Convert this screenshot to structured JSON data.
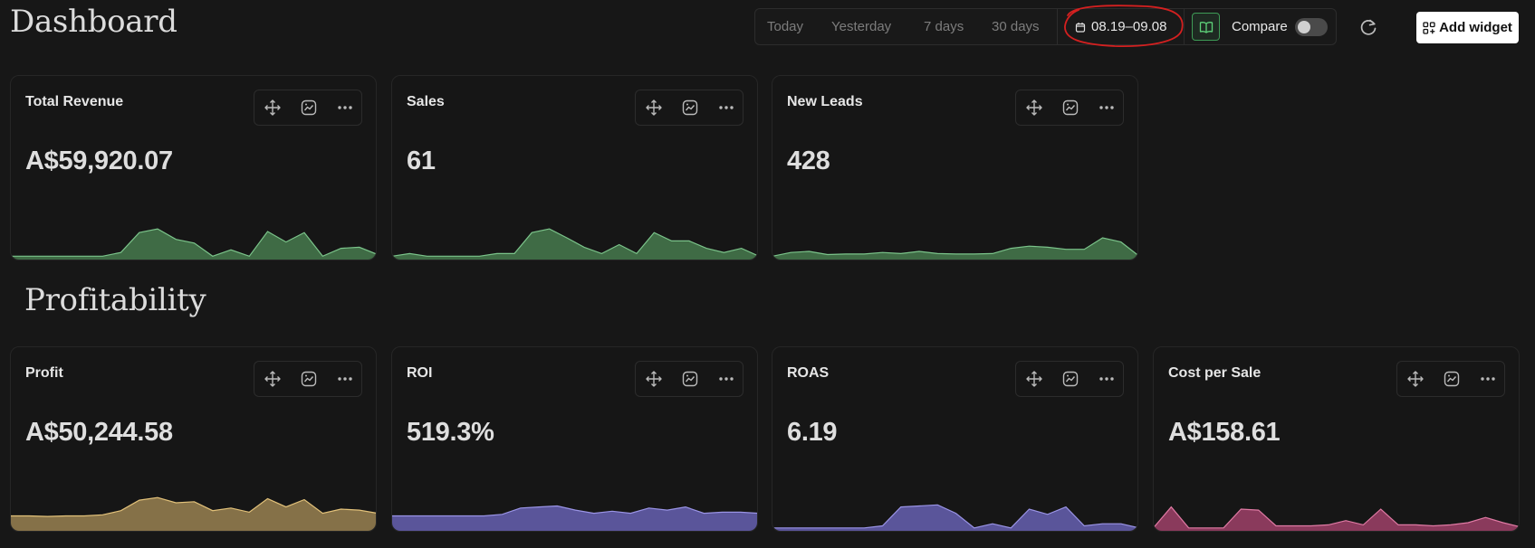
{
  "header": {
    "title": "Dashboard"
  },
  "toolbar": {
    "ranges": [
      "Today",
      "Yesterday",
      "7 days",
      "30 days"
    ],
    "date_range": "08.19–09.08",
    "compare_label": "Compare",
    "compare_enabled": false,
    "add_widget_label": "Add widget"
  },
  "overview": {
    "cards": [
      {
        "title": "Total Revenue",
        "value": "A$59,920.07",
        "color": "#3f6b45",
        "line": "#7bc48a",
        "trend": [
          0.03,
          0.03,
          0.03,
          0.03,
          0.03,
          0.03,
          0.1,
          0.48,
          0.55,
          0.35,
          0.28,
          0.03,
          0.15,
          0.03,
          0.5,
          0.3,
          0.48,
          0.03,
          0.18,
          0.2,
          0.06
        ]
      },
      {
        "title": "Sales",
        "value": "61",
        "color": "#3f6b45",
        "line": "#7bc48a",
        "trend": [
          0.03,
          0.08,
          0.03,
          0.03,
          0.03,
          0.03,
          0.08,
          0.08,
          0.48,
          0.55,
          0.38,
          0.2,
          0.08,
          0.25,
          0.08,
          0.48,
          0.32,
          0.32,
          0.18,
          0.1,
          0.18,
          0.03
        ]
      },
      {
        "title": "New Leads",
        "value": "428",
        "color": "#3f6b45",
        "line": "#7bc48a",
        "trend": [
          0.03,
          0.1,
          0.12,
          0.06,
          0.07,
          0.07,
          0.1,
          0.08,
          0.12,
          0.08,
          0.07,
          0.07,
          0.08,
          0.18,
          0.22,
          0.2,
          0.16,
          0.16,
          0.38,
          0.3,
          0.03
        ]
      }
    ]
  },
  "profitability": {
    "title": "Profitability",
    "cards": [
      {
        "title": "Profit",
        "value": "A$50,244.58",
        "color": "#857148",
        "line": "#e3c27a",
        "trend": [
          0.25,
          0.25,
          0.24,
          0.25,
          0.25,
          0.27,
          0.35,
          0.55,
          0.6,
          0.5,
          0.52,
          0.35,
          0.4,
          0.32,
          0.58,
          0.42,
          0.56,
          0.3,
          0.38,
          0.36,
          0.3
        ]
      },
      {
        "title": "ROI",
        "value": "519.3%",
        "color": "#5a559a",
        "line": "#9a94e6",
        "trend": [
          0.25,
          0.25,
          0.25,
          0.25,
          0.25,
          0.25,
          0.28,
          0.4,
          0.42,
          0.44,
          0.36,
          0.3,
          0.34,
          0.3,
          0.4,
          0.36,
          0.42,
          0.3,
          0.32,
          0.32,
          0.3
        ]
      },
      {
        "title": "ROAS",
        "value": "6.19",
        "color": "#5a559a",
        "line": "#9a94e6",
        "trend": [
          0.02,
          0.02,
          0.02,
          0.02,
          0.02,
          0.02,
          0.06,
          0.42,
          0.44,
          0.46,
          0.3,
          0.02,
          0.1,
          0.02,
          0.38,
          0.28,
          0.42,
          0.06,
          0.1,
          0.1,
          0.02
        ]
      },
      {
        "title": "Cost per Sale",
        "value": "A$158.61",
        "color": "#8a3a5c",
        "line": "#e07aa4",
        "trend": [
          0.03,
          0.42,
          0.02,
          0.02,
          0.02,
          0.38,
          0.36,
          0.06,
          0.06,
          0.06,
          0.08,
          0.16,
          0.08,
          0.38,
          0.08,
          0.08,
          0.06,
          0.08,
          0.12,
          0.22,
          0.12,
          0.04
        ]
      }
    ]
  },
  "icons": {
    "card_actions": [
      "move-icon",
      "chart-style-icon",
      "more-icon"
    ],
    "toolbar": [
      "calendar-icon",
      "book-icon",
      "refresh-icon",
      "add-widget-icon"
    ]
  }
}
